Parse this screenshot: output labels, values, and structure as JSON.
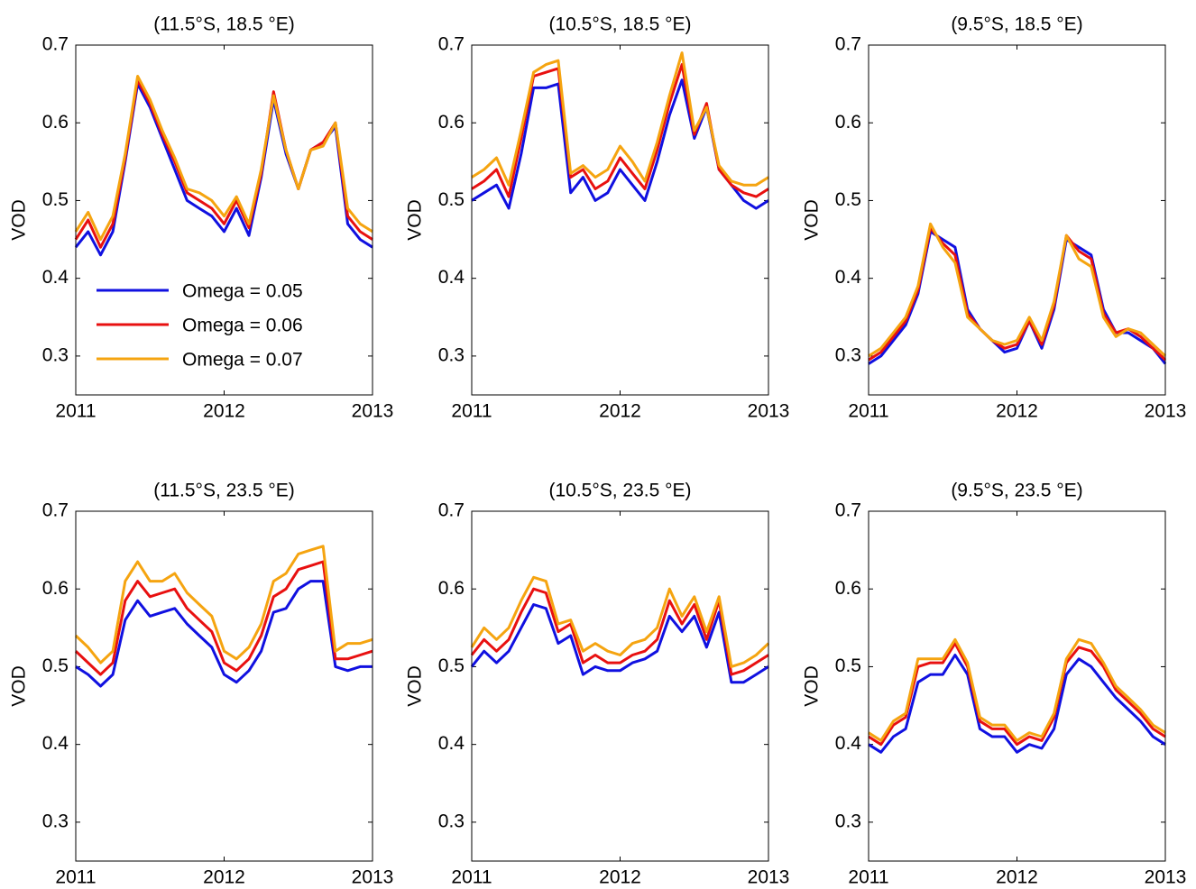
{
  "chart_data": [
    {
      "type": "line",
      "title": "(11.5°S, 18.5 °E)",
      "ylabel": "VOD",
      "legend": "lower left",
      "x": [
        2011.0,
        2011.083,
        2011.167,
        2011.25,
        2011.333,
        2011.417,
        2011.5,
        2011.583,
        2011.667,
        2011.75,
        2011.833,
        2011.917,
        2012.0,
        2012.083,
        2012.167,
        2012.25,
        2012.333,
        2012.417,
        2012.5,
        2012.583,
        2012.667,
        2012.75,
        2012.833,
        2012.917,
        2013.0
      ],
      "xlim": [
        2011,
        2013
      ],
      "xticks": [
        2011,
        2012,
        2013
      ],
      "ylim": [
        0.25,
        0.7
      ],
      "yticks": [
        0.3,
        0.4,
        0.5,
        0.6,
        0.7
      ],
      "series": [
        {
          "name": "Omega = 0.05",
          "color": "#1010e0",
          "values": [
            0.44,
            0.46,
            0.43,
            0.46,
            0.55,
            0.65,
            0.62,
            0.58,
            0.54,
            0.5,
            0.49,
            0.48,
            0.46,
            0.49,
            0.455,
            0.53,
            0.63,
            0.56,
            0.515,
            0.565,
            0.575,
            0.595,
            0.47,
            0.45,
            0.44
          ]
        },
        {
          "name": "Omega = 0.06",
          "color": "#e81010",
          "values": [
            0.45,
            0.475,
            0.44,
            0.47,
            0.555,
            0.655,
            0.625,
            0.585,
            0.55,
            0.51,
            0.5,
            0.49,
            0.47,
            0.5,
            0.465,
            0.535,
            0.64,
            0.565,
            0.515,
            0.565,
            0.575,
            0.6,
            0.48,
            0.46,
            0.45
          ]
        },
        {
          "name": "Omega = 0.07",
          "color": "#f5a410",
          "values": [
            0.46,
            0.485,
            0.45,
            0.48,
            0.56,
            0.66,
            0.63,
            0.59,
            0.555,
            0.515,
            0.51,
            0.5,
            0.48,
            0.505,
            0.47,
            0.54,
            0.635,
            0.565,
            0.515,
            0.565,
            0.57,
            0.6,
            0.49,
            0.47,
            0.46
          ]
        }
      ]
    },
    {
      "type": "line",
      "title": "(10.5°S, 18.5 °E)",
      "ylabel": "VOD",
      "x": [
        2011.0,
        2011.083,
        2011.167,
        2011.25,
        2011.333,
        2011.417,
        2011.5,
        2011.583,
        2011.667,
        2011.75,
        2011.833,
        2011.917,
        2012.0,
        2012.083,
        2012.167,
        2012.25,
        2012.333,
        2012.417,
        2012.5,
        2012.583,
        2012.667,
        2012.75,
        2012.833,
        2012.917,
        2013.0
      ],
      "xlim": [
        2011,
        2013
      ],
      "xticks": [
        2011,
        2012,
        2013
      ],
      "ylim": [
        0.25,
        0.7
      ],
      "yticks": [
        0.3,
        0.4,
        0.5,
        0.6,
        0.7
      ],
      "series": [
        {
          "color": "#1010e0",
          "values": [
            0.5,
            0.51,
            0.52,
            0.49,
            0.56,
            0.645,
            0.645,
            0.65,
            0.51,
            0.53,
            0.5,
            0.51,
            0.54,
            0.52,
            0.5,
            0.55,
            0.61,
            0.655,
            0.58,
            0.62,
            0.54,
            0.52,
            0.5,
            0.49,
            0.5
          ]
        },
        {
          "color": "#e81010",
          "values": [
            0.515,
            0.525,
            0.54,
            0.505,
            0.58,
            0.66,
            0.665,
            0.67,
            0.53,
            0.54,
            0.515,
            0.525,
            0.555,
            0.535,
            0.515,
            0.565,
            0.625,
            0.675,
            0.585,
            0.625,
            0.54,
            0.52,
            0.51,
            0.505,
            0.515
          ]
        },
        {
          "color": "#f5a410",
          "values": [
            0.53,
            0.54,
            0.555,
            0.52,
            0.59,
            0.665,
            0.675,
            0.68,
            0.535,
            0.545,
            0.53,
            0.54,
            0.57,
            0.55,
            0.525,
            0.575,
            0.635,
            0.69,
            0.59,
            0.62,
            0.545,
            0.525,
            0.52,
            0.52,
            0.53
          ]
        }
      ]
    },
    {
      "type": "line",
      "title": "(9.5°S, 18.5 °E)",
      "ylabel": "VOD",
      "x": [
        2011.0,
        2011.083,
        2011.167,
        2011.25,
        2011.333,
        2011.417,
        2011.5,
        2011.583,
        2011.667,
        2011.75,
        2011.833,
        2011.917,
        2012.0,
        2012.083,
        2012.167,
        2012.25,
        2012.333,
        2012.417,
        2012.5,
        2012.583,
        2012.667,
        2012.75,
        2012.833,
        2012.917,
        2013.0
      ],
      "xlim": [
        2011,
        2013
      ],
      "xticks": [
        2011,
        2012,
        2013
      ],
      "ylim": [
        0.25,
        0.7
      ],
      "yticks": [
        0.3,
        0.4,
        0.5,
        0.6,
        0.7
      ],
      "series": [
        {
          "color": "#1010e0",
          "values": [
            0.29,
            0.3,
            0.32,
            0.34,
            0.38,
            0.46,
            0.45,
            0.44,
            0.36,
            0.335,
            0.32,
            0.305,
            0.31,
            0.345,
            0.31,
            0.36,
            0.45,
            0.44,
            0.43,
            0.36,
            0.33,
            0.33,
            0.32,
            0.31,
            0.29
          ]
        },
        {
          "color": "#e81010",
          "values": [
            0.295,
            0.305,
            0.325,
            0.345,
            0.385,
            0.465,
            0.445,
            0.43,
            0.355,
            0.335,
            0.32,
            0.31,
            0.315,
            0.345,
            0.315,
            0.365,
            0.455,
            0.435,
            0.425,
            0.355,
            0.33,
            0.335,
            0.325,
            0.31,
            0.295
          ]
        },
        {
          "color": "#f5a410",
          "values": [
            0.3,
            0.31,
            0.33,
            0.35,
            0.39,
            0.47,
            0.44,
            0.42,
            0.35,
            0.335,
            0.32,
            0.315,
            0.32,
            0.35,
            0.32,
            0.37,
            0.455,
            0.425,
            0.415,
            0.35,
            0.325,
            0.335,
            0.33,
            0.315,
            0.3
          ]
        }
      ]
    },
    {
      "type": "line",
      "title": "(11.5°S, 23.5 °E)",
      "ylabel": "VOD",
      "x": [
        2011.0,
        2011.083,
        2011.167,
        2011.25,
        2011.333,
        2011.417,
        2011.5,
        2011.583,
        2011.667,
        2011.75,
        2011.833,
        2011.917,
        2012.0,
        2012.083,
        2012.167,
        2012.25,
        2012.333,
        2012.417,
        2012.5,
        2012.583,
        2012.667,
        2012.75,
        2012.833,
        2012.917,
        2013.0
      ],
      "xlim": [
        2011,
        2013
      ],
      "xticks": [
        2011,
        2012,
        2013
      ],
      "ylim": [
        0.25,
        0.7
      ],
      "yticks": [
        0.3,
        0.4,
        0.5,
        0.6,
        0.7
      ],
      "series": [
        {
          "color": "#1010e0",
          "values": [
            0.5,
            0.49,
            0.475,
            0.49,
            0.56,
            0.585,
            0.565,
            0.57,
            0.575,
            0.555,
            0.54,
            0.525,
            0.49,
            0.48,
            0.495,
            0.52,
            0.57,
            0.575,
            0.6,
            0.61,
            0.61,
            0.5,
            0.495,
            0.5,
            0.5
          ]
        },
        {
          "color": "#e81010",
          "values": [
            0.52,
            0.505,
            0.49,
            0.505,
            0.585,
            0.61,
            0.59,
            0.595,
            0.6,
            0.575,
            0.56,
            0.545,
            0.505,
            0.495,
            0.51,
            0.54,
            0.59,
            0.6,
            0.625,
            0.63,
            0.635,
            0.51,
            0.51,
            0.515,
            0.52
          ]
        },
        {
          "color": "#f5a410",
          "values": [
            0.54,
            0.525,
            0.505,
            0.52,
            0.61,
            0.635,
            0.61,
            0.61,
            0.62,
            0.595,
            0.58,
            0.565,
            0.52,
            0.51,
            0.525,
            0.555,
            0.61,
            0.62,
            0.645,
            0.65,
            0.655,
            0.52,
            0.53,
            0.53,
            0.535
          ]
        }
      ]
    },
    {
      "type": "line",
      "title": "(10.5°S, 23.5 °E)",
      "ylabel": "VOD",
      "x": [
        2011.0,
        2011.083,
        2011.167,
        2011.25,
        2011.333,
        2011.417,
        2011.5,
        2011.583,
        2011.667,
        2011.75,
        2011.833,
        2011.917,
        2012.0,
        2012.083,
        2012.167,
        2012.25,
        2012.333,
        2012.417,
        2012.5,
        2012.583,
        2012.667,
        2012.75,
        2012.833,
        2012.917,
        2013.0
      ],
      "xlim": [
        2011,
        2013
      ],
      "xticks": [
        2011,
        2012,
        2013
      ],
      "ylim": [
        0.25,
        0.7
      ],
      "yticks": [
        0.3,
        0.4,
        0.5,
        0.6,
        0.7
      ],
      "series": [
        {
          "color": "#1010e0",
          "values": [
            0.5,
            0.52,
            0.505,
            0.52,
            0.55,
            0.58,
            0.575,
            0.53,
            0.54,
            0.49,
            0.5,
            0.495,
            0.495,
            0.505,
            0.51,
            0.52,
            0.565,
            0.545,
            0.565,
            0.525,
            0.57,
            0.48,
            0.48,
            0.49,
            0.5
          ]
        },
        {
          "color": "#e81010",
          "values": [
            0.515,
            0.535,
            0.52,
            0.535,
            0.57,
            0.6,
            0.595,
            0.545,
            0.555,
            0.505,
            0.515,
            0.505,
            0.505,
            0.515,
            0.52,
            0.535,
            0.585,
            0.555,
            0.58,
            0.535,
            0.585,
            0.49,
            0.495,
            0.505,
            0.515
          ]
        },
        {
          "color": "#f5a410",
          "values": [
            0.525,
            0.55,
            0.535,
            0.55,
            0.585,
            0.615,
            0.61,
            0.555,
            0.56,
            0.52,
            0.53,
            0.52,
            0.515,
            0.53,
            0.535,
            0.55,
            0.6,
            0.565,
            0.59,
            0.545,
            0.59,
            0.5,
            0.505,
            0.515,
            0.53
          ]
        }
      ]
    },
    {
      "type": "line",
      "title": "(9.5°S, 23.5 °E)",
      "ylabel": "VOD",
      "x": [
        2011.0,
        2011.083,
        2011.167,
        2011.25,
        2011.333,
        2011.417,
        2011.5,
        2011.583,
        2011.667,
        2011.75,
        2011.833,
        2011.917,
        2012.0,
        2012.083,
        2012.167,
        2012.25,
        2012.333,
        2012.417,
        2012.5,
        2012.583,
        2012.667,
        2012.75,
        2012.833,
        2012.917,
        2013.0
      ],
      "xlim": [
        2011,
        2013
      ],
      "xticks": [
        2011,
        2012,
        2013
      ],
      "ylim": [
        0.25,
        0.7
      ],
      "yticks": [
        0.3,
        0.4,
        0.5,
        0.6,
        0.7
      ],
      "series": [
        {
          "color": "#1010e0",
          "values": [
            0.4,
            0.39,
            0.41,
            0.42,
            0.48,
            0.49,
            0.49,
            0.515,
            0.49,
            0.42,
            0.41,
            0.41,
            0.39,
            0.4,
            0.395,
            0.42,
            0.49,
            0.51,
            0.5,
            0.48,
            0.46,
            0.445,
            0.43,
            0.41,
            0.4
          ]
        },
        {
          "color": "#e81010",
          "values": [
            0.41,
            0.4,
            0.425,
            0.435,
            0.5,
            0.505,
            0.505,
            0.53,
            0.5,
            0.43,
            0.42,
            0.42,
            0.4,
            0.41,
            0.405,
            0.435,
            0.505,
            0.525,
            0.52,
            0.5,
            0.47,
            0.455,
            0.44,
            0.42,
            0.41
          ]
        },
        {
          "color": "#f5a410",
          "values": [
            0.415,
            0.405,
            0.43,
            0.44,
            0.51,
            0.51,
            0.51,
            0.535,
            0.505,
            0.435,
            0.425,
            0.425,
            0.405,
            0.415,
            0.41,
            0.44,
            0.51,
            0.535,
            0.53,
            0.505,
            0.475,
            0.46,
            0.445,
            0.425,
            0.415
          ]
        }
      ]
    }
  ]
}
